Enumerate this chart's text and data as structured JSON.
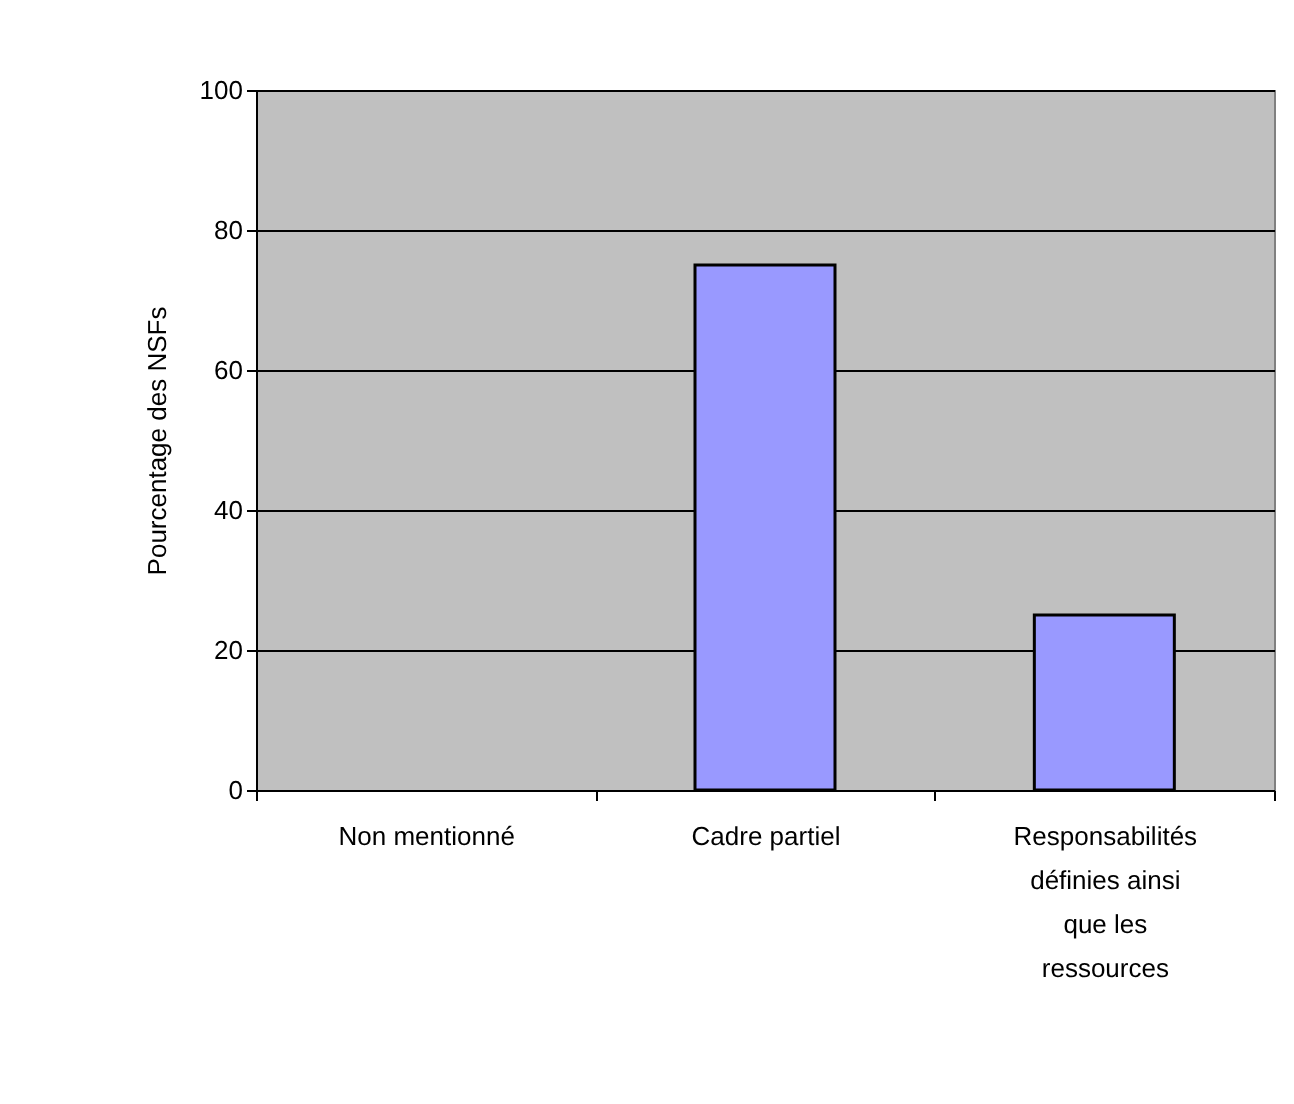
{
  "chart_data": {
    "type": "bar",
    "ylabel": "Pourcentage des NSFs",
    "categories": [
      "Non mentionné",
      "Cadre partiel",
      "Responsabilités définies ainsi que les ressources"
    ],
    "values": [
      0,
      75,
      25
    ],
    "color": "#9999ff",
    "ylim": [
      0,
      100
    ],
    "yticks": [
      0,
      20,
      40,
      60,
      80,
      100
    ],
    "grid": "y"
  }
}
